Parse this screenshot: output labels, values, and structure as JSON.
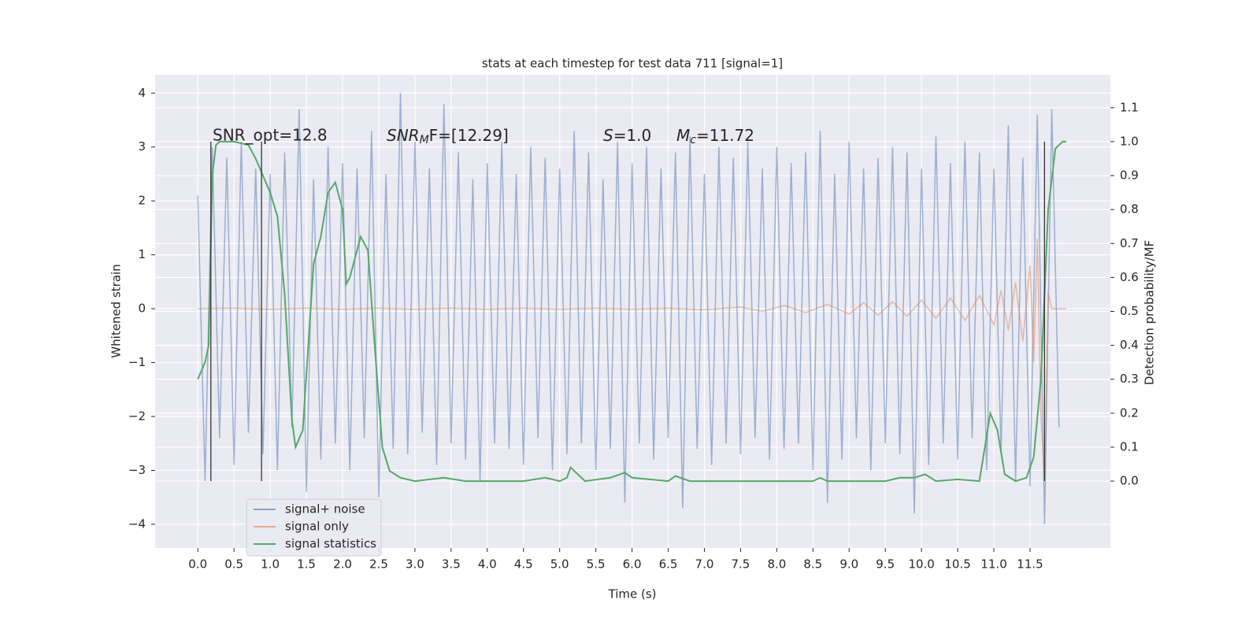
{
  "chart_data": {
    "type": "line",
    "title": "stats at each timestep for test data 711 [signal=1]",
    "x_label": "Time (s)",
    "y_label": "Whitened strain",
    "y2_label": "Detection probability/MF",
    "xlim": [
      -0.59,
      12.61
    ],
    "ylim": [
      -4.44,
      4.34
    ],
    "y2lim": [
      -0.197,
      1.197
    ],
    "xticks": [
      {
        "value": 0,
        "label": "0.0"
      },
      0.5,
      {
        "value": 1,
        "label": "1.0"
      },
      1.5,
      {
        "value": 2,
        "label": "2.0"
      },
      2.5,
      {
        "value": 3,
        "label": "3.0"
      },
      3.5,
      {
        "value": 4,
        "label": "4.0"
      },
      4.5,
      {
        "value": 5,
        "label": "5.0"
      },
      5.5,
      {
        "value": 6,
        "label": "6.0"
      },
      6.5,
      {
        "value": 7,
        "label": "7.0"
      },
      7.5,
      {
        "value": 8,
        "label": "8.0"
      },
      8.5,
      {
        "value": 9,
        "label": "9.0"
      },
      9.5,
      {
        "value": 10,
        "label": "10.0"
      },
      10.5,
      {
        "value": 11,
        "label": "11.0"
      },
      11.5
    ],
    "yticks": [
      {
        "value": -4,
        "label": "−4"
      },
      {
        "value": -3,
        "label": "−3"
      },
      {
        "value": -2,
        "label": "−2"
      },
      {
        "value": -1,
        "label": "−1"
      },
      0,
      1,
      2,
      3,
      4
    ],
    "y2ticks": [
      {
        "value": 0,
        "label": "0.0"
      },
      0.1,
      0.2,
      0.3,
      0.4,
      0.5,
      0.6,
      0.7,
      0.8,
      0.9,
      {
        "value": 1,
        "label": "1.0"
      },
      1.1
    ],
    "grid": true,
    "legend": "lower left",
    "annotations": [
      "SNR_opt=12.8",
      {
        "main": "SNR",
        "sub": "M",
        "rest": "F=[12.29]"
      },
      {
        "main": "S",
        "sub": "",
        "rest": "=1.0"
      },
      {
        "main": "M",
        "sub": "c",
        "rest": "=11.72"
      }
    ],
    "vlines": [
      0.18,
      0.88,
      11.7
    ],
    "series": [
      {
        "name": "signal+ noise",
        "color": "#4c72b0",
        "axis": "y",
        "x": [
          0,
          0.1,
          0.2,
          0.3,
          0.4,
          0.5,
          0.6,
          0.7,
          0.8,
          0.9,
          1,
          1.1,
          1.2,
          1.3,
          1.4,
          1.5,
          1.6,
          1.7,
          1.8,
          1.9,
          2,
          2.1,
          2.2,
          2.3,
          2.4,
          2.5,
          2.6,
          2.7,
          2.8,
          2.9,
          3,
          3.1,
          3.2,
          3.3,
          3.4,
          3.5,
          3.6,
          3.7,
          3.8,
          3.9,
          4,
          4.1,
          4.2,
          4.3,
          4.4,
          4.5,
          4.6,
          4.7,
          4.8,
          4.9,
          5,
          5.1,
          5.2,
          5.3,
          5.4,
          5.5,
          5.6,
          5.7,
          5.8,
          5.9,
          6,
          6.1,
          6.2,
          6.3,
          6.4,
          6.5,
          6.6,
          6.7,
          6.8,
          6.9,
          7,
          7.1,
          7.2,
          7.3,
          7.4,
          7.5,
          7.6,
          7.7,
          7.8,
          7.9,
          8,
          8.1,
          8.2,
          8.3,
          8.4,
          8.5,
          8.6,
          8.7,
          8.8,
          8.9,
          9,
          9.1,
          9.2,
          9.3,
          9.4,
          9.5,
          9.6,
          9.7,
          9.8,
          9.9,
          10,
          10.1,
          10.2,
          10.3,
          10.4,
          10.5,
          10.6,
          10.7,
          10.8,
          10.9,
          11,
          11.1,
          11.2,
          11.3,
          11.4,
          11.5,
          11.6,
          11.7,
          11.8,
          11.9
        ],
        "values": [
          2.1,
          -3.2,
          3.0,
          -2.4,
          2.8,
          -2.9,
          3.1,
          -2.3,
          2.6,
          -2.7,
          2.5,
          -3.0,
          2.9,
          -2.2,
          3.7,
          -3.4,
          2.4,
          -2.8,
          3.0,
          -2.5,
          2.7,
          -3.0,
          2.6,
          -2.4,
          3.3,
          -3.5,
          2.5,
          -2.6,
          4.0,
          -2.7,
          3.1,
          -2.3,
          2.6,
          -2.9,
          3.8,
          -2.5,
          2.9,
          -2.8,
          2.4,
          -3.2,
          2.7,
          -2.5,
          3.1,
          -2.6,
          2.5,
          -2.9,
          3.0,
          -2.4,
          2.8,
          -3.0,
          2.6,
          -2.7,
          3.3,
          -2.5,
          2.9,
          -3.0,
          2.4,
          -2.6,
          3.1,
          -3.6,
          2.7,
          -2.5,
          3.0,
          -2.8,
          2.6,
          -2.4,
          2.9,
          -3.7,
          3.2,
          -2.6,
          2.5,
          -2.9,
          3.0,
          -2.5,
          2.8,
          -2.7,
          3.1,
          -2.4,
          2.6,
          -2.8,
          3.0,
          -2.6,
          2.7,
          -2.5,
          2.9,
          -3.0,
          3.3,
          -3.6,
          2.5,
          -2.8,
          3.1,
          -2.4,
          2.6,
          -3.0,
          2.8,
          -2.5,
          3.0,
          -2.7,
          2.9,
          -3.8,
          2.6,
          -2.9,
          3.2,
          -2.5,
          2.7,
          -2.8,
          3.1,
          -2.4,
          2.9,
          -3.0,
          2.6,
          -2.7,
          3.4,
          -3.2,
          2.8,
          -3.3,
          3.6,
          -4.0,
          3.7,
          -2.2
        ]
      },
      {
        "name": "signal only",
        "color": "#dd8452",
        "axis": "y",
        "x": [
          0,
          0.5,
          1,
          1.5,
          2,
          2.5,
          3,
          3.5,
          4,
          4.5,
          5,
          5.5,
          6,
          6.5,
          7,
          7.5,
          7.8,
          8.1,
          8.4,
          8.7,
          9,
          9.2,
          9.4,
          9.6,
          9.8,
          10,
          10.2,
          10.4,
          10.6,
          10.8,
          11,
          11.1,
          11.2,
          11.3,
          11.4,
          11.5,
          11.55,
          11.6,
          11.65,
          11.7,
          11.75,
          11.8,
          11.9,
          12
        ],
        "values": [
          0,
          0.01,
          -0.01,
          0.01,
          -0.01,
          0.01,
          -0.01,
          0.01,
          -0.01,
          0.01,
          -0.01,
          0.01,
          -0.01,
          0.01,
          -0.02,
          0.03,
          -0.05,
          0.06,
          -0.07,
          0.08,
          -0.1,
          0.11,
          -0.12,
          0.13,
          -0.14,
          0.16,
          -0.18,
          0.2,
          -0.22,
          0.25,
          -0.3,
          0.34,
          -0.4,
          0.48,
          -0.6,
          0.8,
          -1.0,
          1.3,
          -2.0,
          -3.2,
          0.3,
          0,
          0,
          0
        ]
      },
      {
        "name": "signal statistics",
        "color": "#55a868",
        "axis": "y2",
        "x": [
          0,
          0.1,
          0.15,
          0.2,
          0.25,
          0.3,
          0.5,
          0.7,
          0.8,
          0.9,
          1,
          1.1,
          1.2,
          1.3,
          1.35,
          1.45,
          1.6,
          1.7,
          1.8,
          1.9,
          2,
          2.05,
          2.1,
          2.2,
          2.25,
          2.35,
          2.45,
          2.55,
          2.65,
          2.8,
          3,
          3.4,
          3.7,
          4.5,
          4.8,
          5,
          5.1,
          5.15,
          5.25,
          5.35,
          5.7,
          5.9,
          6,
          6.5,
          6.6,
          6.8,
          8.5,
          8.6,
          8.7,
          9.5,
          9.7,
          9.9,
          10.05,
          10.2,
          10.5,
          10.8,
          10.95,
          11.05,
          11.15,
          11.3,
          11.45,
          11.55,
          11.65,
          11.75,
          11.85,
          11.95,
          12
        ],
        "values": [
          0.3,
          0.35,
          0.4,
          0.9,
          0.99,
          1.0,
          1.0,
          0.99,
          0.95,
          0.9,
          0.85,
          0.78,
          0.55,
          0.18,
          0.1,
          0.15,
          0.64,
          0.72,
          0.85,
          0.88,
          0.8,
          0.58,
          0.6,
          0.68,
          0.72,
          0.68,
          0.38,
          0.1,
          0.03,
          0.01,
          0.0,
          0.01,
          0.0,
          0.0,
          0.01,
          0.0,
          0.01,
          0.04,
          0.02,
          0.0,
          0.01,
          0.025,
          0.01,
          0.0,
          0.015,
          0.0,
          0.0,
          0.01,
          0.0,
          0.0,
          0.01,
          0.01,
          0.02,
          0.0,
          0.005,
          0.0,
          0.2,
          0.15,
          0.02,
          0.0,
          0.01,
          0.07,
          0.3,
          0.8,
          0.98,
          1.0,
          1.0
        ]
      }
    ]
  }
}
